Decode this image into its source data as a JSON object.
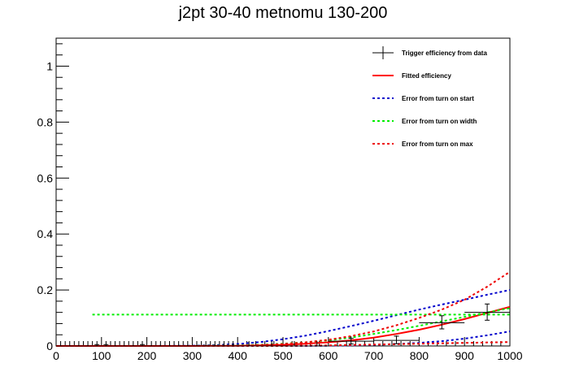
{
  "chart_data": {
    "type": "line",
    "title": "j2pt 30-40 metnomu 130-200",
    "xlabel": "",
    "ylabel": "",
    "xlim": [
      0,
      1000
    ],
    "ylim": [
      0,
      1.1
    ],
    "x_ticks": [
      0,
      100,
      200,
      300,
      400,
      500,
      600,
      700,
      800,
      900,
      1000
    ],
    "x_tick_labels": [
      "0",
      "100",
      "200",
      "300",
      "400",
      "500",
      "600",
      "700",
      "800",
      "900",
      "1000"
    ],
    "y_ticks": [
      0,
      0.2,
      0.4,
      0.6,
      0.8,
      1
    ],
    "y_tick_labels": [
      "0",
      "0.2",
      "0.4",
      "0.6",
      "0.8",
      "1"
    ],
    "grid": false,
    "legend_position": "top-right",
    "legend": [
      {
        "label": "Trigger efficiency from data",
        "color": "#000000",
        "style": "errorbar"
      },
      {
        "label": "Fitted efficiency",
        "color": "#ff0000",
        "style": "solid"
      },
      {
        "label": "Error from turn on start",
        "color": "#0000cc",
        "style": "dashed"
      },
      {
        "label": "Error from turn on width",
        "color": "#00ee00",
        "style": "dashed"
      },
      {
        "label": "Error from turn on max",
        "color": "#ee0000",
        "style": "dashed"
      }
    ],
    "data_points": {
      "name": "Trigger efficiency from data",
      "color": "#000000",
      "points": [
        {
          "x": 10,
          "y": 0.0,
          "xerr": 10,
          "yerr_up": 0.0,
          "yerr_down": 0.0
        },
        {
          "x": 30,
          "y": 0.0,
          "xerr": 10,
          "yerr_up": 0.0,
          "yerr_down": 0.0
        },
        {
          "x": 50,
          "y": 0.0,
          "xerr": 10,
          "yerr_up": 0.0,
          "yerr_down": 0.0
        },
        {
          "x": 70,
          "y": 0.0,
          "xerr": 10,
          "yerr_up": 0.0,
          "yerr_down": 0.0
        },
        {
          "x": 90,
          "y": 0.0,
          "xerr": 10,
          "yerr_up": 0.005,
          "yerr_down": 0.0
        },
        {
          "x": 110,
          "y": 0.0,
          "xerr": 10,
          "yerr_up": 0.005,
          "yerr_down": 0.0
        },
        {
          "x": 130,
          "y": 0.0,
          "xerr": 10,
          "yerr_up": 0.0,
          "yerr_down": 0.0
        },
        {
          "x": 150,
          "y": 0.0,
          "xerr": 10,
          "yerr_up": 0.0,
          "yerr_down": 0.0
        },
        {
          "x": 170,
          "y": 0.0,
          "xerr": 10,
          "yerr_up": 0.0,
          "yerr_down": 0.0
        },
        {
          "x": 190,
          "y": 0.0,
          "xerr": 10,
          "yerr_up": 0.005,
          "yerr_down": 0.0
        },
        {
          "x": 210,
          "y": 0.0,
          "xerr": 10,
          "yerr_up": 0.0,
          "yerr_down": 0.0
        },
        {
          "x": 230,
          "y": 0.0,
          "xerr": 10,
          "yerr_up": 0.0,
          "yerr_down": 0.0
        },
        {
          "x": 250,
          "y": 0.0,
          "xerr": 10,
          "yerr_up": 0.0,
          "yerr_down": 0.0
        },
        {
          "x": 270,
          "y": 0.0,
          "xerr": 10,
          "yerr_up": 0.0,
          "yerr_down": 0.0
        },
        {
          "x": 290,
          "y": 0.0,
          "xerr": 10,
          "yerr_up": 0.0,
          "yerr_down": 0.0
        },
        {
          "x": 310,
          "y": 0.0,
          "xerr": 10,
          "yerr_up": 0.0,
          "yerr_down": 0.0
        },
        {
          "x": 330,
          "y": 0.0,
          "xerr": 10,
          "yerr_up": 0.0,
          "yerr_down": 0.0
        },
        {
          "x": 350,
          "y": 0.0,
          "xerr": 10,
          "yerr_up": 0.0,
          "yerr_down": 0.0
        },
        {
          "x": 370,
          "y": 0.0,
          "xerr": 10,
          "yerr_up": 0.0,
          "yerr_down": 0.0
        },
        {
          "x": 390,
          "y": 0.0,
          "xerr": 10,
          "yerr_up": 0.0,
          "yerr_down": 0.0
        },
        {
          "x": 425,
          "y": 0.0,
          "xerr": 25,
          "yerr_up": 0.0,
          "yerr_down": 0.0
        },
        {
          "x": 475,
          "y": 0.0,
          "xerr": 25,
          "yerr_up": 0.0,
          "yerr_down": 0.0
        },
        {
          "x": 525,
          "y": 0.0,
          "xerr": 25,
          "yerr_up": 0.0,
          "yerr_down": 0.0
        },
        {
          "x": 575,
          "y": 0.0,
          "xerr": 25,
          "yerr_up": 0.0,
          "yerr_down": 0.0
        },
        {
          "x": 650,
          "y": 0.017,
          "xerr": 50,
          "yerr_up": 0.01,
          "yerr_down": 0.01
        },
        {
          "x": 750,
          "y": 0.02,
          "xerr": 50,
          "yerr_up": 0.015,
          "yerr_down": 0.012
        },
        {
          "x": 850,
          "y": 0.083,
          "xerr": 50,
          "yerr_up": 0.025,
          "yerr_down": 0.022
        },
        {
          "x": 950,
          "y": 0.12,
          "xerr": 50,
          "yerr_up": 0.03,
          "yerr_down": 0.028
        }
      ]
    },
    "series": [
      {
        "name": "Fitted efficiency",
        "color": "#ff0000",
        "style": "solid",
        "x": [
          0,
          100,
          200,
          300,
          400,
          450,
          500,
          550,
          600,
          650,
          700,
          750,
          800,
          850,
          900,
          950,
          1000
        ],
        "y": [
          0,
          0,
          0,
          0,
          0.001,
          0.002,
          0.004,
          0.008,
          0.013,
          0.02,
          0.03,
          0.043,
          0.058,
          0.076,
          0.096,
          0.118,
          0.14
        ]
      },
      {
        "name": "Error from turn on start",
        "color": "#0000cc",
        "style": "dashed",
        "x": [
          0,
          100,
          200,
          300,
          350,
          400,
          450,
          500,
          550,
          600,
          650,
          700,
          750,
          800,
          850,
          900,
          950,
          1000
        ],
        "y": [
          0,
          0,
          0,
          0.001,
          0.003,
          0.007,
          0.014,
          0.024,
          0.037,
          0.053,
          0.071,
          0.09,
          0.11,
          0.13,
          0.148,
          0.165,
          0.183,
          0.2
        ]
      },
      {
        "name": "Error from turn on start",
        "color": "#0000cc",
        "style": "dashed",
        "x": [
          0,
          300,
          500,
          600,
          650,
          700,
          750,
          800,
          850,
          900,
          950,
          1000
        ],
        "y": [
          0,
          0,
          0,
          0.001,
          0.002,
          0.004,
          0.007,
          0.011,
          0.017,
          0.026,
          0.038,
          0.052
        ]
      },
      {
        "name": "Error from turn on width",
        "color": "#00ee00",
        "style": "dashed",
        "x": [
          80,
          1000
        ],
        "y": [
          0.112,
          0.112
        ]
      },
      {
        "name": "Error from turn on width",
        "color": "#00ee00",
        "style": "dashed",
        "x": [
          0,
          300,
          400,
          450,
          500,
          550,
          600,
          650,
          700,
          750,
          800,
          850,
          900,
          950,
          1000
        ],
        "y": [
          0,
          0,
          0.002,
          0.004,
          0.008,
          0.013,
          0.02,
          0.03,
          0.043,
          0.057,
          0.072,
          0.088,
          0.104,
          0.12,
          0.135
        ]
      },
      {
        "name": "Error from turn on max",
        "color": "#ee0000",
        "style": "dashed",
        "x": [
          0,
          300,
          400,
          450,
          500,
          550,
          600,
          650,
          700,
          750,
          800,
          850,
          900,
          950,
          1000
        ],
        "y": [
          0,
          0,
          0.001,
          0.003,
          0.007,
          0.013,
          0.022,
          0.035,
          0.052,
          0.074,
          0.1,
          0.13,
          0.165,
          0.212,
          0.265
        ]
      },
      {
        "name": "Error from turn on max",
        "color": "#ee0000",
        "style": "dashed",
        "x": [
          0,
          500,
          600,
          700,
          800,
          900,
          1000
        ],
        "y": [
          0,
          0,
          0.002,
          0.005,
          0.008,
          0.011,
          0.014
        ]
      }
    ]
  }
}
